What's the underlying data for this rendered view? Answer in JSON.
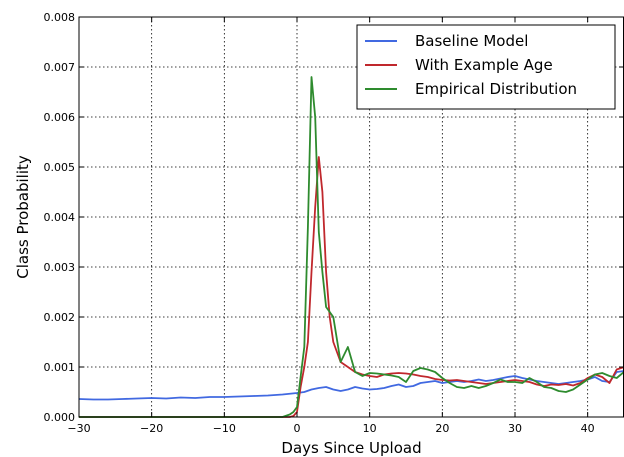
{
  "chart_data": {
    "type": "line",
    "title": "",
    "xlabel": "Days Since Upload",
    "ylabel": "Class Probability",
    "xlim": [
      -30,
      45
    ],
    "ylim": [
      0,
      0.008
    ],
    "xticks": [
      -30,
      -20,
      -10,
      0,
      10,
      20,
      30,
      40
    ],
    "xtick_labels": [
      "−30",
      "−20",
      "−10",
      "0",
      "10",
      "20",
      "30",
      "40"
    ],
    "yticks": [
      0,
      0.001,
      0.002,
      0.003,
      0.004,
      0.005,
      0.006,
      0.007,
      0.008
    ],
    "ytick_labels": [
      "0.000",
      "0.001",
      "0.002",
      "0.003",
      "0.004",
      "0.005",
      "0.006",
      "0.007",
      "0.008"
    ],
    "grid": true,
    "legend_position": "top-right",
    "series": [
      {
        "name": "Baseline Model",
        "color": "#4169e1",
        "points": [
          [
            -30,
            0.00036
          ],
          [
            -28,
            0.00035
          ],
          [
            -26,
            0.00035
          ],
          [
            -24,
            0.00036
          ],
          [
            -22,
            0.00037
          ],
          [
            -20,
            0.00038
          ],
          [
            -18,
            0.00037
          ],
          [
            -16,
            0.00039
          ],
          [
            -14,
            0.00038
          ],
          [
            -12,
            0.0004
          ],
          [
            -10,
            0.0004
          ],
          [
            -8,
            0.00041
          ],
          [
            -6,
            0.00042
          ],
          [
            -4,
            0.00043
          ],
          [
            -2,
            0.00045
          ],
          [
            0,
            0.00048
          ],
          [
            1,
            0.0005
          ],
          [
            2,
            0.00055
          ],
          [
            3,
            0.00058
          ],
          [
            4,
            0.0006
          ],
          [
            5,
            0.00055
          ],
          [
            6,
            0.00052
          ],
          [
            7,
            0.00055
          ],
          [
            8,
            0.0006
          ],
          [
            9,
            0.00057
          ],
          [
            10,
            0.00055
          ],
          [
            11,
            0.00056
          ],
          [
            12,
            0.00058
          ],
          [
            13,
            0.00062
          ],
          [
            14,
            0.00065
          ],
          [
            15,
            0.0006
          ],
          [
            16,
            0.00062
          ],
          [
            17,
            0.00068
          ],
          [
            18,
            0.0007
          ],
          [
            19,
            0.00072
          ],
          [
            20,
            0.00068
          ],
          [
            21,
            0.0007
          ],
          [
            22,
            0.00072
          ],
          [
            23,
            0.0007
          ],
          [
            24,
            0.00072
          ],
          [
            25,
            0.00075
          ],
          [
            26,
            0.00072
          ],
          [
            27,
            0.00074
          ],
          [
            28,
            0.00077
          ],
          [
            29,
            0.0008
          ],
          [
            30,
            0.00082
          ],
          [
            31,
            0.00078
          ],
          [
            32,
            0.00075
          ],
          [
            33,
            0.00072
          ],
          [
            34,
            0.0007
          ],
          [
            35,
            0.00068
          ],
          [
            36,
            0.00066
          ],
          [
            37,
            0.00068
          ],
          [
            38,
            0.0007
          ],
          [
            39,
            0.00072
          ],
          [
            40,
            0.00075
          ],
          [
            41,
            0.0008
          ],
          [
            42,
            0.00072
          ],
          [
            43,
            0.0007
          ],
          [
            44,
            0.0009
          ],
          [
            45,
            0.00092
          ]
        ]
      },
      {
        "name": "With Example Age",
        "color": "#c0282d",
        "points": [
          [
            -30,
            0.0
          ],
          [
            -2,
            0.0
          ],
          [
            -1,
            0.0
          ],
          [
            -0.5,
            2e-05
          ],
          [
            0,
            0.0001
          ],
          [
            0.5,
            0.0006
          ],
          [
            1,
            0.001
          ],
          [
            1.5,
            0.0015
          ],
          [
            2,
            0.0029
          ],
          [
            2.5,
            0.0042
          ],
          [
            3,
            0.0052
          ],
          [
            3.5,
            0.0045
          ],
          [
            4,
            0.0029
          ],
          [
            4.5,
            0.002
          ],
          [
            5,
            0.0015
          ],
          [
            6,
            0.0011
          ],
          [
            7,
            0.001
          ],
          [
            8,
            0.0009
          ],
          [
            9,
            0.00085
          ],
          [
            10,
            0.00082
          ],
          [
            11,
            0.0008
          ],
          [
            12,
            0.00085
          ],
          [
            13,
            0.00087
          ],
          [
            14,
            0.00088
          ],
          [
            15,
            0.00087
          ],
          [
            16,
            0.00085
          ],
          [
            17,
            0.00082
          ],
          [
            18,
            0.0008
          ],
          [
            19,
            0.00076
          ],
          [
            20,
            0.00074
          ],
          [
            21,
            0.00073
          ],
          [
            22,
            0.00074
          ],
          [
            23,
            0.00072
          ],
          [
            24,
            0.0007
          ],
          [
            25,
            0.00068
          ],
          [
            26,
            0.00066
          ],
          [
            27,
            0.00068
          ],
          [
            28,
            0.0007
          ],
          [
            29,
            0.00072
          ],
          [
            30,
            0.00074
          ],
          [
            31,
            0.00072
          ],
          [
            32,
            0.0007
          ],
          [
            33,
            0.00065
          ],
          [
            34,
            0.00062
          ],
          [
            35,
            0.00065
          ],
          [
            36,
            0.00064
          ],
          [
            37,
            0.00066
          ],
          [
            38,
            0.00063
          ],
          [
            39,
            0.00068
          ],
          [
            40,
            0.00078
          ],
          [
            41,
            0.00085
          ],
          [
            42,
            0.0008
          ],
          [
            43,
            0.00068
          ],
          [
            44,
            0.00095
          ],
          [
            45,
            0.001
          ]
        ]
      },
      {
        "name": "Empirical Distribution",
        "color": "#2e8b2e",
        "points": [
          [
            -30,
            0.0
          ],
          [
            -2,
            0.0
          ],
          [
            -1,
            5e-05
          ],
          [
            -0.5,
            0.0001
          ],
          [
            0,
            0.0002
          ],
          [
            0.5,
            0.0008
          ],
          [
            1,
            0.0014
          ],
          [
            1.5,
            0.0038
          ],
          [
            2,
            0.0068
          ],
          [
            2.5,
            0.006
          ],
          [
            3,
            0.0037
          ],
          [
            3.5,
            0.0029
          ],
          [
            4,
            0.0022
          ],
          [
            5,
            0.002
          ],
          [
            6,
            0.0011
          ],
          [
            7,
            0.0014
          ],
          [
            8,
            0.0009
          ],
          [
            9,
            0.00082
          ],
          [
            10,
            0.00088
          ],
          [
            11,
            0.00087
          ],
          [
            12,
            0.00085
          ],
          [
            13,
            0.00083
          ],
          [
            14,
            0.0008
          ],
          [
            15,
            0.0007
          ],
          [
            16,
            0.00092
          ],
          [
            17,
            0.00098
          ],
          [
            18,
            0.00095
          ],
          [
            19,
            0.0009
          ],
          [
            20,
            0.00078
          ],
          [
            21,
            0.00068
          ],
          [
            22,
            0.0006
          ],
          [
            23,
            0.00058
          ],
          [
            24,
            0.00062
          ],
          [
            25,
            0.00058
          ],
          [
            26,
            0.00062
          ],
          [
            27,
            0.00068
          ],
          [
            28,
            0.00075
          ],
          [
            29,
            0.0007
          ],
          [
            30,
            0.0007
          ],
          [
            31,
            0.00068
          ],
          [
            32,
            0.00078
          ],
          [
            33,
            0.0007
          ],
          [
            34,
            0.0006
          ],
          [
            35,
            0.00058
          ],
          [
            36,
            0.00052
          ],
          [
            37,
            0.0005
          ],
          [
            38,
            0.00055
          ],
          [
            39,
            0.00065
          ],
          [
            40,
            0.00075
          ],
          [
            41,
            0.00085
          ],
          [
            42,
            0.00088
          ],
          [
            43,
            0.00082
          ],
          [
            44,
            0.00078
          ],
          [
            45,
            0.0009
          ]
        ]
      }
    ]
  }
}
